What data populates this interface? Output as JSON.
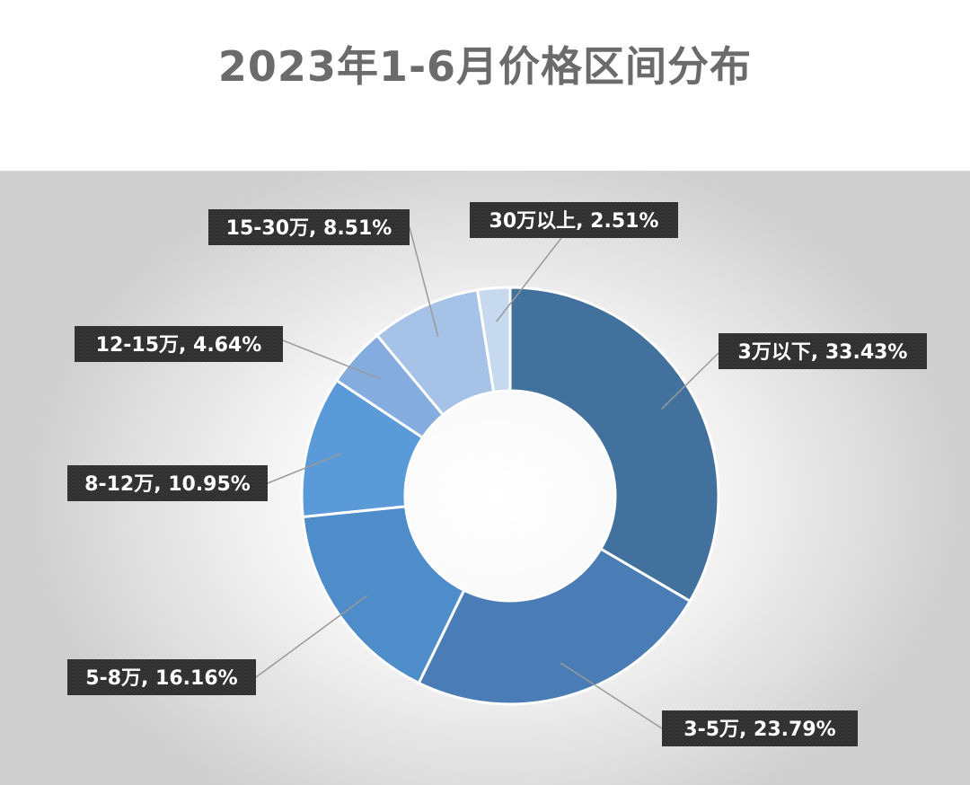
{
  "title": "2023年1-6月价格区间分布",
  "chart_data": {
    "type": "pie",
    "donut": true,
    "title": "2023年1-6月价格区间分布",
    "slices": [
      {
        "label": "3万以下",
        "value": 33.43,
        "display": "3万以下, 33.43%",
        "color": "#41719c"
      },
      {
        "label": "3-5万",
        "value": 23.79,
        "display": "3-5万, 23.79%",
        "color": "#4a7db5"
      },
      {
        "label": "5-8万",
        "value": 16.16,
        "display": "5-8万, 16.16%",
        "color": "#4f8cca"
      },
      {
        "label": "8-12万",
        "value": 10.95,
        "display": "8-12万, 10.95%",
        "color": "#5a9ad8"
      },
      {
        "label": "12-15万",
        "value": 4.64,
        "display": "12-15万, 4.64%",
        "color": "#84acdf"
      },
      {
        "label": "15-30万",
        "value": 8.51,
        "display": "15-30万, 8.51%",
        "color": "#a6c2e6"
      },
      {
        "label": "30万以上",
        "value": 2.51,
        "display": "30万以上, 2.51%",
        "color": "#c7d9ef"
      }
    ],
    "legend": "none",
    "data_labels": "outside-with-leader-lines"
  }
}
